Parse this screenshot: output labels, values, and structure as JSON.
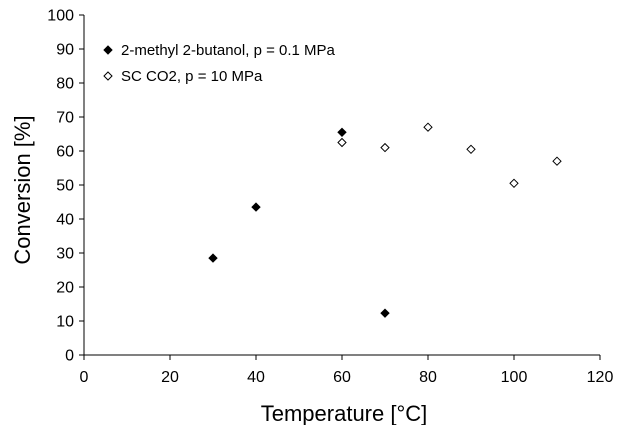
{
  "chart_data": {
    "type": "scatter",
    "title": "",
    "xlabel": "Temperature [°C]",
    "ylabel": "Conversion [%]",
    "xlim": [
      0,
      120
    ],
    "ylim": [
      0,
      100
    ],
    "xticks": [
      0,
      20,
      40,
      60,
      80,
      100,
      120
    ],
    "yticks": [
      0,
      10,
      20,
      30,
      40,
      50,
      60,
      70,
      80,
      90,
      100
    ],
    "grid": false,
    "legend_position": "top-left",
    "series": [
      {
        "name": "2-methyl 2-butanol, p = 0.1 MPa",
        "marker": "filled-diamond",
        "color": "#000000",
        "points": [
          {
            "x": 30,
            "y": 28.5
          },
          {
            "x": 40,
            "y": 43.5
          },
          {
            "x": 60,
            "y": 65.5
          },
          {
            "x": 70,
            "y": 12.3
          }
        ]
      },
      {
        "name": "SC CO2, p = 10 MPa",
        "marker": "open-diamond",
        "color": "#000000",
        "points": [
          {
            "x": 60,
            "y": 62.5
          },
          {
            "x": 70,
            "y": 61
          },
          {
            "x": 80,
            "y": 67
          },
          {
            "x": 90,
            "y": 60.5
          },
          {
            "x": 100,
            "y": 50.5
          },
          {
            "x": 110,
            "y": 57
          }
        ]
      }
    ]
  }
}
